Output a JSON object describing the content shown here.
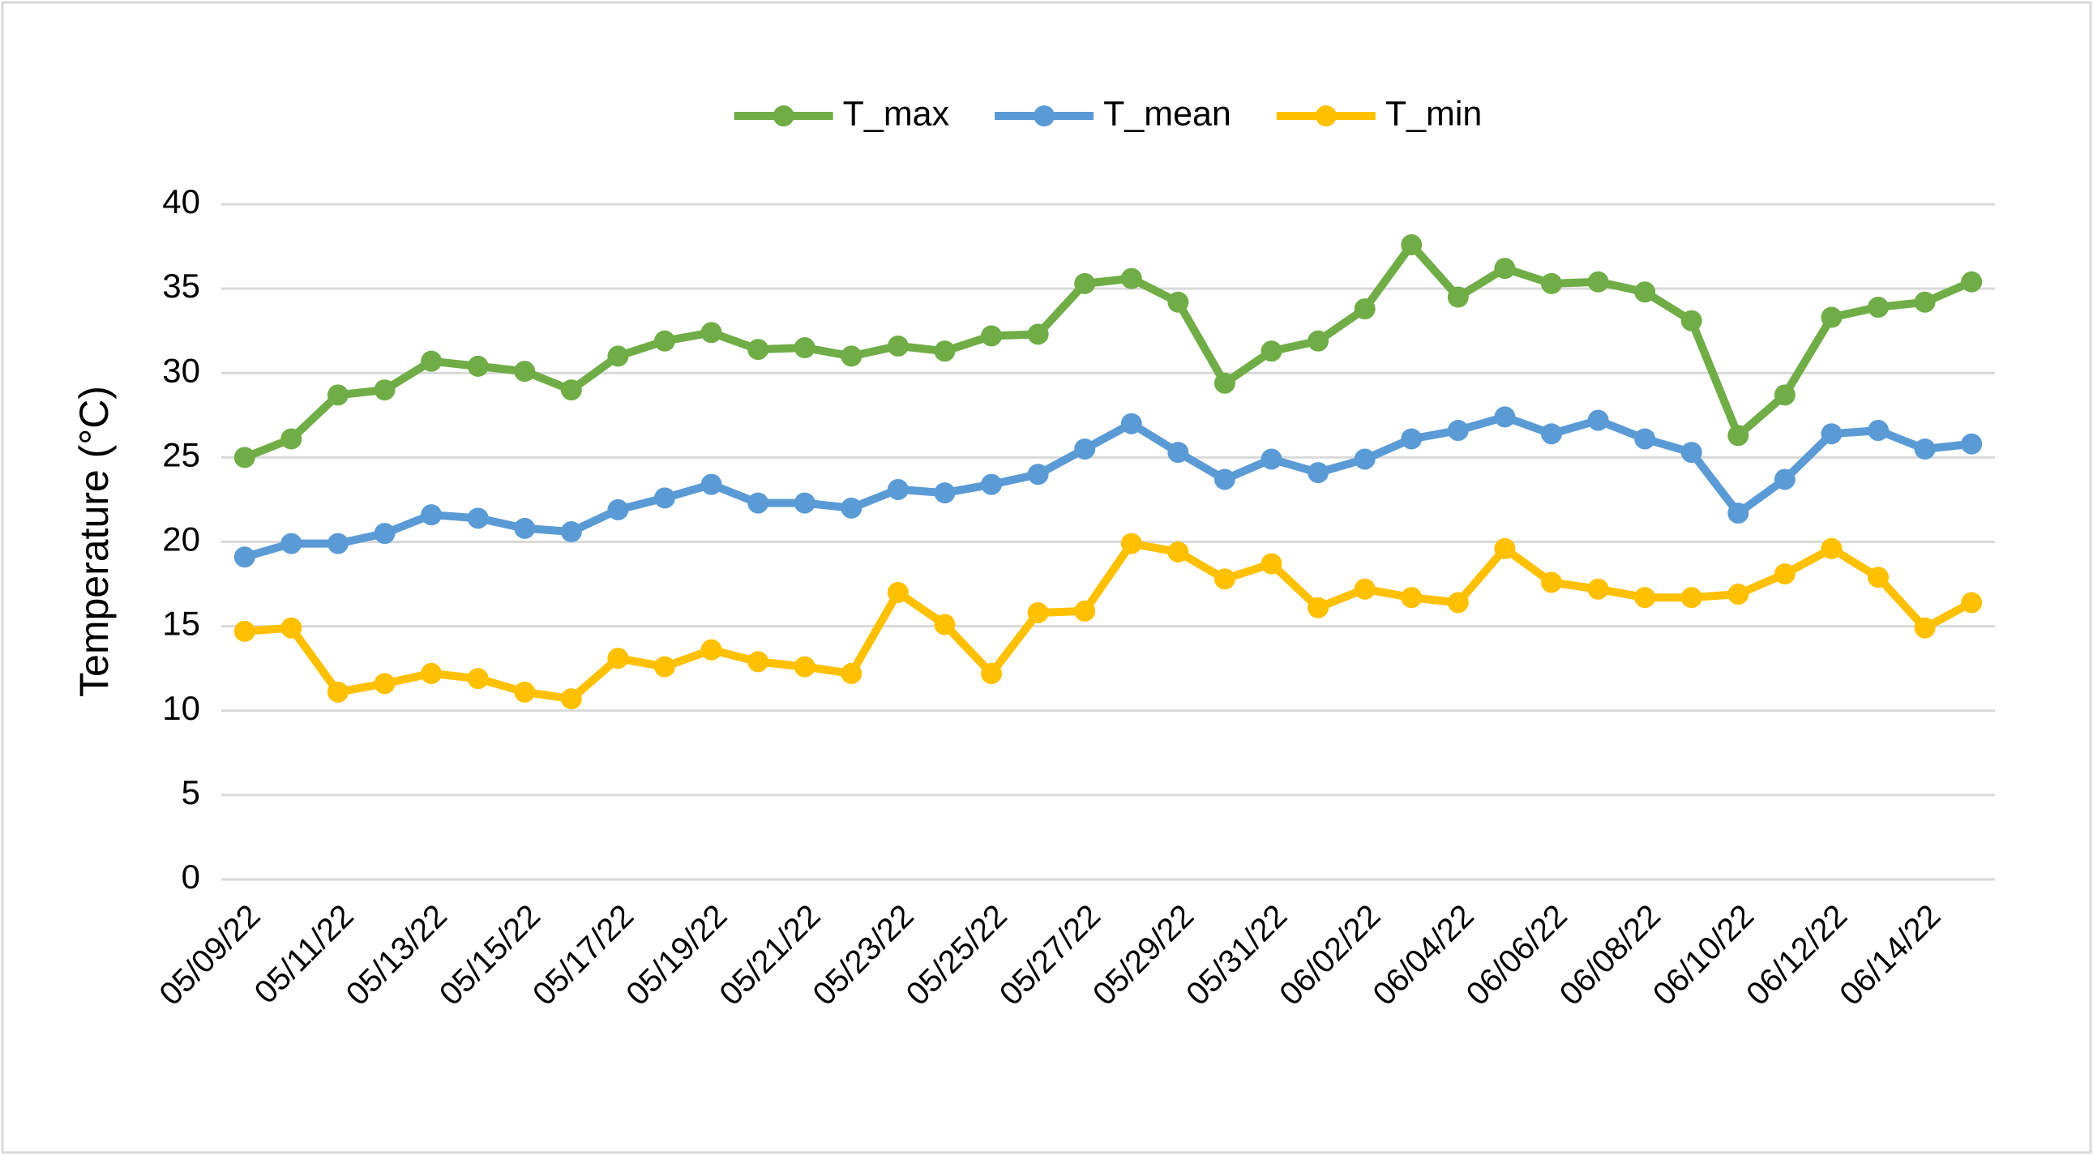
{
  "chart_data": {
    "type": "line",
    "y_label": "Temperature (°C)",
    "categories": [
      "05/09/22",
      null,
      "05/11/22",
      null,
      "05/13/22",
      null,
      "05/15/22",
      null,
      "05/17/22",
      null,
      "05/19/22",
      null,
      "05/21/22",
      null,
      "05/23/22",
      null,
      "05/25/22",
      null,
      "05/27/22",
      null,
      "05/29/22",
      null,
      "05/31/22",
      null,
      "06/02/22",
      null,
      "06/04/22",
      null,
      "06/06/22",
      null,
      "06/08/22",
      null,
      "06/10/22",
      null,
      "06/12/22",
      null,
      "06/14/22",
      null
    ],
    "series": [
      {
        "name": "T_max",
        "color": "#70ad47",
        "values": [
          25.0,
          26.1,
          28.7,
          29.0,
          30.7,
          30.4,
          30.1,
          29.0,
          31.0,
          31.9,
          32.4,
          31.4,
          31.5,
          31.0,
          31.6,
          31.3,
          32.2,
          32.3,
          35.3,
          35.6,
          34.2,
          29.4,
          31.3,
          31.9,
          33.8,
          37.6,
          34.5,
          36.2,
          35.3,
          35.4,
          34.8,
          33.1,
          26.3,
          28.7,
          33.3,
          33.9,
          34.2,
          35.4
        ]
      },
      {
        "name": "T_mean",
        "color": "#5b9bd5",
        "values": [
          19.1,
          19.9,
          19.9,
          20.5,
          21.6,
          21.4,
          20.8,
          20.6,
          21.9,
          22.6,
          23.4,
          22.3,
          22.3,
          22.0,
          23.1,
          22.9,
          23.4,
          24.0,
          25.5,
          27.0,
          25.3,
          23.7,
          24.9,
          24.1,
          24.9,
          26.1,
          26.6,
          27.4,
          26.4,
          27.2,
          26.1,
          25.3,
          21.7,
          23.7,
          26.4,
          26.6,
          25.5,
          25.8
        ]
      },
      {
        "name": "T_min",
        "color": "#ffc000",
        "values": [
          14.7,
          14.9,
          11.1,
          11.6,
          12.2,
          11.9,
          11.1,
          10.7,
          13.1,
          12.6,
          13.6,
          12.9,
          12.6,
          12.2,
          17.0,
          15.1,
          12.2,
          15.8,
          15.9,
          19.9,
          19.4,
          17.8,
          18.7,
          16.1,
          17.2,
          16.7,
          16.4,
          19.6,
          17.6,
          17.2,
          16.7,
          16.7,
          16.9,
          18.1,
          19.6,
          17.9,
          14.9,
          16.4
        ]
      }
    ],
    "ylim": [
      0,
      40
    ],
    "yticks": [
      0,
      5,
      10,
      15,
      20,
      25,
      30,
      35,
      40
    ],
    "grid": true,
    "legend": "top",
    "markers": true
  }
}
